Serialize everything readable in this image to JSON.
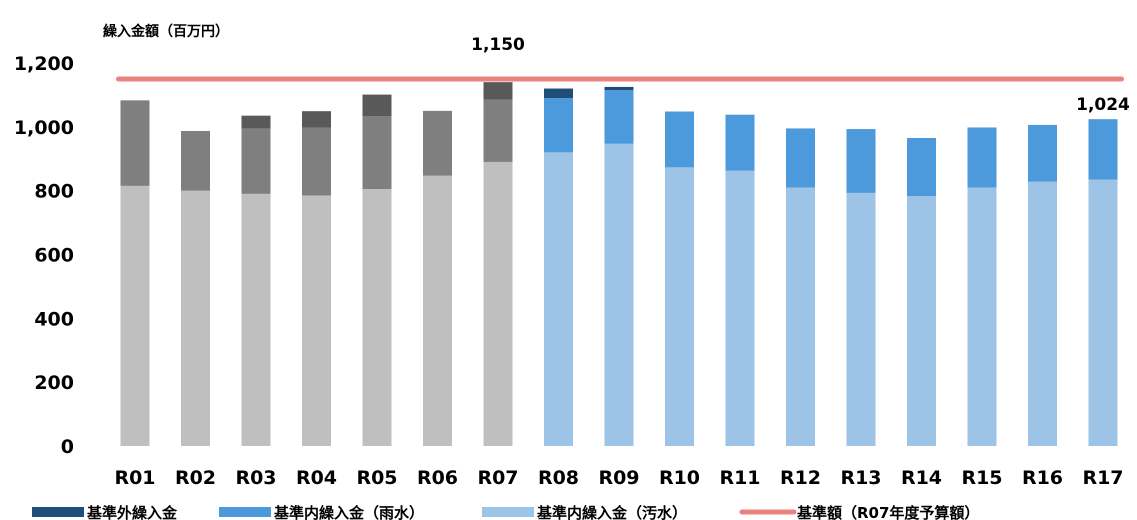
{
  "chart_data": {
    "type": "bar",
    "stacked": true,
    "ylabel": "繰入金額（百万円）",
    "ylim": [
      0,
      1200
    ],
    "yticks": [
      0,
      200,
      400,
      600,
      800,
      1000,
      1200
    ],
    "ytick_labels": [
      "0",
      "200",
      "400",
      "600",
      "800",
      "1,000",
      "1,200"
    ],
    "categories": [
      "R01",
      "R02",
      "R03",
      "R04",
      "R05",
      "R06",
      "R07",
      "R08",
      "R09",
      "R10",
      "R11",
      "R12",
      "R13",
      "R14",
      "R15",
      "R16",
      "R17"
    ],
    "series": [
      {
        "name": "基準内繰入金（汚水）",
        "color": "#9DC3E6",
        "values": [
          null,
          null,
          null,
          null,
          null,
          null,
          null,
          920,
          947,
          873,
          863,
          810,
          793,
          783,
          810,
          828,
          835
        ]
      },
      {
        "name": "基準内繰入金（雨水）",
        "color": "#4C9ADB",
        "values": [
          null,
          null,
          null,
          null,
          null,
          null,
          null,
          170,
          168,
          175,
          175,
          185,
          200,
          182,
          188,
          178,
          189
        ]
      },
      {
        "name": "基準外繰入金",
        "color": "#1F4E79",
        "values": [
          null,
          null,
          null,
          null,
          null,
          null,
          null,
          30,
          10,
          null,
          null,
          null,
          null,
          null,
          null,
          null,
          null
        ]
      },
      {
        "name": "",
        "color": "#BFBFBF",
        "values": [
          815,
          800,
          790,
          785,
          805,
          847,
          890,
          null,
          null,
          null,
          null,
          null,
          null,
          null,
          null,
          null,
          null
        ]
      },
      {
        "name": "",
        "color": "#7F7F7F",
        "values": [
          268,
          187,
          205,
          212,
          228,
          203,
          195,
          null,
          null,
          null,
          null,
          null,
          null,
          null,
          null,
          null,
          null
        ]
      },
      {
        "name": "",
        "color": "#595959",
        "values": [
          null,
          null,
          40,
          52,
          68,
          null,
          55,
          null,
          null,
          null,
          null,
          null,
          null,
          null,
          null,
          null,
          null
        ]
      }
    ],
    "reference_line": {
      "name": "基準額（R07年度予算額）",
      "value": 1150,
      "color": "#E8837F"
    },
    "data_labels": [
      {
        "category": "R07",
        "text": "1,150"
      },
      {
        "category": "R17",
        "text": "1,024"
      }
    ],
    "legend_order": [
      "基準外繰入金",
      "基準内繰入金（雨水）",
      "基準内繰入金（汚水）",
      "基準額（R07年度予算額）"
    ],
    "legend_position": "bottom",
    "grid": false
  }
}
